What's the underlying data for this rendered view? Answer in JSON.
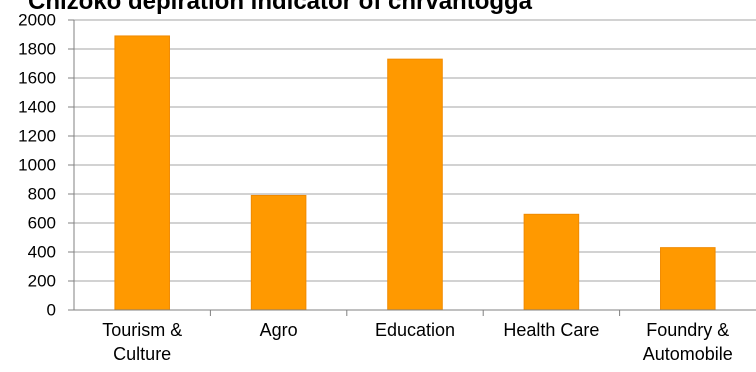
{
  "chart_data": {
    "type": "bar",
    "title": "Chizoko depiration indicator of chrvahtogga",
    "xlabel": "",
    "ylabel": "",
    "categories": [
      [
        "Tourism &",
        "Culture"
      ],
      [
        "Agro"
      ],
      [
        "Education"
      ],
      [
        "Health Care"
      ],
      [
        "Foundry &",
        "Automobile"
      ]
    ],
    "values": [
      1890,
      790,
      1730,
      660,
      430
    ],
    "ylim": [
      0,
      2000
    ],
    "yticks": [
      0,
      200,
      400,
      600,
      800,
      1000,
      1200,
      1400,
      1600,
      1800,
      2000
    ],
    "grid": true,
    "legend": "none",
    "colors": {
      "bar": "#ff9900",
      "bar_edge": "#f08a00",
      "grid": "#a6a6a6",
      "axis": "#808080"
    }
  }
}
